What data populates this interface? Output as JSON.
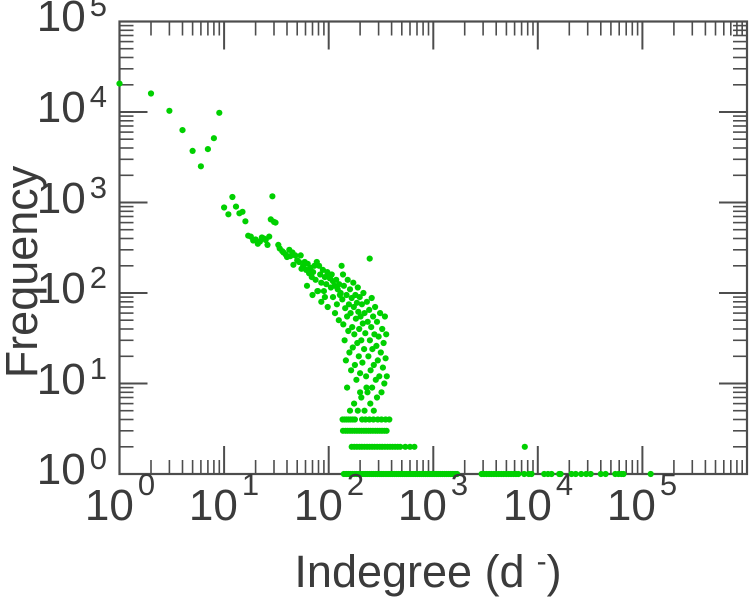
{
  "figure": {
    "ylabel": "Frequency",
    "xlabel_parts": {
      "pre": "Indegree (d",
      "sup": "-",
      "post": ")"
    },
    "tick_base": "10",
    "colors": {
      "marker": "#00d000",
      "axis": "#4d4d4d",
      "text": "#3b3b3b",
      "background": "#ffffff"
    }
  },
  "chart_data": {
    "type": "scatter",
    "title": "",
    "xlabel": "Indegree (d^-)",
    "ylabel": "Frequency",
    "xscale": "log",
    "yscale": "log",
    "xlim": [
      1,
      1000000
    ],
    "ylim": [
      1,
      100000
    ],
    "x_tick_exponents": [
      0,
      1,
      2,
      3,
      4,
      5
    ],
    "y_tick_exponents": [
      0,
      1,
      2,
      3,
      4,
      5
    ],
    "grid": false,
    "legend": "none",
    "marker": {
      "shape": "circle",
      "radius_px": 3.1,
      "color": "#00d000"
    },
    "points": [
      [
        1,
        20600
      ],
      [
        2,
        16000
      ],
      [
        3,
        10300
      ],
      [
        4,
        6310
      ],
      [
        5,
        3720
      ],
      [
        6,
        2510
      ],
      [
        7,
        3890
      ],
      [
        8,
        5130
      ],
      [
        9,
        9800
      ],
      [
        10,
        880
      ],
      [
        11,
        740
      ],
      [
        12,
        1150
      ],
      [
        13,
        900
      ],
      [
        14,
        760
      ],
      [
        15,
        790
      ],
      [
        16,
        620
      ],
      [
        17,
        430
      ],
      [
        18,
        420
      ],
      [
        19,
        380
      ],
      [
        20,
        390
      ],
      [
        21,
        350
      ],
      [
        22,
        370
      ],
      [
        23,
        410
      ],
      [
        24,
        400
      ],
      [
        25,
        385
      ],
      [
        26,
        340
      ],
      [
        27,
        420
      ],
      [
        28,
        650
      ],
      [
        29,
        1170
      ],
      [
        30,
        610
      ],
      [
        31,
        600
      ],
      [
        33,
        340
      ],
      [
        34,
        310
      ],
      [
        36,
        290
      ],
      [
        37,
        280
      ],
      [
        39,
        265
      ],
      [
        40,
        250
      ],
      [
        42,
        300
      ],
      [
        43,
        255
      ],
      [
        45,
        280
      ],
      [
        46,
        205
      ],
      [
        48,
        260
      ],
      [
        50,
        230
      ],
      [
        52,
        220
      ],
      [
        54,
        260
      ],
      [
        55,
        185
      ],
      [
        57,
        200
      ],
      [
        59,
        220
      ],
      [
        61,
        180
      ],
      [
        63,
        210
      ],
      [
        65,
        165
      ],
      [
        67,
        190
      ],
      [
        69,
        150
      ],
      [
        71,
        170
      ],
      [
        73,
        200
      ],
      [
        75,
        140
      ],
      [
        77,
        220
      ],
      [
        79,
        105
      ],
      [
        81,
        200
      ],
      [
        83,
        160
      ],
      [
        85,
        130
      ],
      [
        88,
        180
      ],
      [
        90,
        105
      ],
      [
        92,
        150
      ],
      [
        95,
        125
      ],
      [
        97,
        170
      ],
      [
        100,
        150
      ],
      [
        62,
        120
      ],
      [
        70,
        95
      ],
      [
        78,
        105
      ],
      [
        85,
        80
      ],
      [
        92,
        90
      ],
      [
        98,
        70
      ],
      [
        105,
        115
      ],
      [
        110,
        90
      ],
      [
        115,
        60
      ],
      [
        120,
        75
      ],
      [
        125,
        50
      ],
      [
        128,
        95
      ],
      [
        103,
        145
      ],
      [
        107,
        160
      ],
      [
        110,
        135
      ],
      [
        114,
        120
      ],
      [
        118,
        140
      ],
      [
        122,
        110
      ],
      [
        126,
        125
      ],
      [
        130,
        100
      ],
      [
        133,
        200
      ],
      [
        137,
        160
      ],
      [
        135,
        85
      ],
      [
        138,
        45
      ],
      [
        140,
        120
      ],
      [
        142,
        30
      ],
      [
        144,
        68
      ],
      [
        146,
        18
      ],
      [
        148,
        95
      ],
      [
        150,
        55
      ],
      [
        150,
        9
      ],
      [
        152,
        140
      ],
      [
        154,
        38
      ],
      [
        156,
        75
      ],
      [
        158,
        22
      ],
      [
        160,
        110
      ],
      [
        160,
        5
      ],
      [
        162,
        60
      ],
      [
        164,
        14
      ],
      [
        166,
        88
      ],
      [
        168,
        42
      ],
      [
        170,
        25
      ],
      [
        172,
        130
      ],
      [
        174,
        70
      ],
      [
        175,
        6
      ],
      [
        176,
        35
      ],
      [
        178,
        16
      ],
      [
        180,
        95
      ],
      [
        182,
        52
      ],
      [
        184,
        11
      ],
      [
        186,
        78
      ],
      [
        188,
        28
      ],
      [
        190,
        5
      ],
      [
        190,
        115
      ],
      [
        192,
        62
      ],
      [
        194,
        20
      ],
      [
        196,
        40
      ],
      [
        198,
        90
      ],
      [
        200,
        8
      ],
      [
        200,
        13
      ],
      [
        202,
        55
      ],
      [
        205,
        7
      ],
      [
        205,
        30
      ],
      [
        208,
        75
      ],
      [
        210,
        17
      ],
      [
        212,
        46
      ],
      [
        215,
        100
      ],
      [
        218,
        24
      ],
      [
        220,
        5
      ],
      [
        220,
        60
      ],
      [
        224,
        36
      ],
      [
        228,
        12
      ],
      [
        230,
        9
      ],
      [
        232,
        80
      ],
      [
        235,
        8
      ],
      [
        236,
        48
      ],
      [
        240,
        20
      ],
      [
        244,
        65
      ],
      [
        247,
        240
      ],
      [
        248,
        30
      ],
      [
        250,
        6
      ],
      [
        252,
        14
      ],
      [
        255,
        42
      ],
      [
        258,
        88
      ],
      [
        260,
        9
      ],
      [
        262,
        24
      ],
      [
        266,
        55
      ],
      [
        270,
        5
      ],
      [
        270,
        16
      ],
      [
        274,
        35
      ],
      [
        278,
        70
      ],
      [
        282,
        11
      ],
      [
        286,
        26
      ],
      [
        290,
        7
      ],
      [
        290,
        48
      ],
      [
        295,
        18
      ],
      [
        300,
        33
      ],
      [
        305,
        12
      ],
      [
        310,
        60
      ],
      [
        315,
        22
      ],
      [
        320,
        8
      ],
      [
        325,
        40
      ],
      [
        330,
        15
      ],
      [
        335,
        28
      ],
      [
        340,
        10
      ],
      [
        345,
        55
      ],
      [
        350,
        19
      ],
      [
        355,
        35
      ],
      [
        360,
        12
      ],
      [
        136,
        4
      ],
      [
        142,
        4
      ],
      [
        148,
        4
      ],
      [
        155,
        4
      ],
      [
        162,
        4
      ],
      [
        170,
        4
      ],
      [
        178,
        4
      ],
      [
        209,
        4
      ],
      [
        225,
        4
      ],
      [
        245,
        4
      ],
      [
        268,
        4
      ],
      [
        295,
        4
      ],
      [
        320,
        4
      ],
      [
        350,
        4
      ],
      [
        380,
        4
      ],
      [
        137,
        3
      ],
      [
        145,
        3
      ],
      [
        152,
        3
      ],
      [
        160,
        3
      ],
      [
        168,
        3
      ],
      [
        177,
        3
      ],
      [
        186,
        3
      ],
      [
        196,
        3
      ],
      [
        206,
        3
      ],
      [
        217,
        3
      ],
      [
        228,
        3
      ],
      [
        240,
        3
      ],
      [
        252,
        3
      ],
      [
        265,
        3
      ],
      [
        279,
        3
      ],
      [
        293,
        3
      ],
      [
        308,
        3
      ],
      [
        324,
        3
      ],
      [
        341,
        3
      ],
      [
        358,
        3
      ],
      [
        166,
        2
      ],
      [
        176,
        2
      ],
      [
        186,
        2
      ],
      [
        197,
        2
      ],
      [
        208,
        2
      ],
      [
        220,
        2
      ],
      [
        233,
        2
      ],
      [
        246,
        2
      ],
      [
        260,
        2
      ],
      [
        275,
        2
      ],
      [
        291,
        2
      ],
      [
        308,
        2
      ],
      [
        326,
        2
      ],
      [
        345,
        2
      ],
      [
        365,
        2
      ],
      [
        386,
        2
      ],
      [
        408,
        2
      ],
      [
        432,
        2
      ],
      [
        457,
        2
      ],
      [
        483,
        2
      ],
      [
        540,
        2
      ],
      [
        600,
        2
      ],
      [
        660,
        2
      ],
      [
        7500,
        2
      ],
      [
        140,
        1
      ],
      [
        147,
        1
      ],
      [
        154,
        1
      ],
      [
        161,
        1
      ],
      [
        169,
        1
      ],
      [
        177,
        1
      ],
      [
        185,
        1
      ],
      [
        194,
        1
      ],
      [
        203,
        1
      ],
      [
        213,
        1
      ],
      [
        223,
        1
      ],
      [
        233,
        1
      ],
      [
        244,
        1
      ],
      [
        256,
        1
      ],
      [
        268,
        1
      ],
      [
        281,
        1
      ],
      [
        294,
        1
      ],
      [
        308,
        1
      ],
      [
        322,
        1
      ],
      [
        337,
        1
      ],
      [
        353,
        1
      ],
      [
        370,
        1
      ],
      [
        387,
        1
      ],
      [
        405,
        1
      ],
      [
        424,
        1
      ],
      [
        444,
        1
      ],
      [
        465,
        1
      ],
      [
        487,
        1
      ],
      [
        510,
        1
      ],
      [
        534,
        1
      ],
      [
        559,
        1
      ],
      [
        585,
        1
      ],
      [
        613,
        1
      ],
      [
        642,
        1
      ],
      [
        672,
        1
      ],
      [
        704,
        1
      ],
      [
        737,
        1
      ],
      [
        772,
        1
      ],
      [
        808,
        1
      ],
      [
        846,
        1
      ],
      [
        886,
        1
      ],
      [
        928,
        1
      ],
      [
        972,
        1
      ],
      [
        1018,
        1
      ],
      [
        1066,
        1
      ],
      [
        1116,
        1
      ],
      [
        1169,
        1
      ],
      [
        1224,
        1
      ],
      [
        1282,
        1
      ],
      [
        1342,
        1
      ],
      [
        1405,
        1
      ],
      [
        1471,
        1
      ],
      [
        1540,
        1
      ],
      [
        1613,
        1
      ],
      [
        1689,
        1
      ],
      [
        2900,
        1
      ],
      [
        3060,
        1
      ],
      [
        3230,
        1
      ],
      [
        3410,
        1
      ],
      [
        3600,
        1
      ],
      [
        3800,
        1
      ],
      [
        4010,
        1
      ],
      [
        4230,
        1
      ],
      [
        4470,
        1
      ],
      [
        4720,
        1
      ],
      [
        4980,
        1
      ],
      [
        5260,
        1
      ],
      [
        5550,
        1
      ],
      [
        5860,
        1
      ],
      [
        6180,
        1
      ],
      [
        6520,
        1
      ],
      [
        7400,
        1
      ],
      [
        8200,
        1
      ],
      [
        8700,
        1
      ],
      [
        11500,
        1
      ],
      [
        12500,
        1
      ],
      [
        13500,
        1
      ],
      [
        16000,
        1
      ],
      [
        16500,
        1
      ],
      [
        21000,
        1
      ],
      [
        23000,
        1
      ],
      [
        26000,
        1
      ],
      [
        29000,
        1
      ],
      [
        32000,
        1
      ],
      [
        40000,
        1
      ],
      [
        44500,
        1
      ],
      [
        55000,
        1
      ],
      [
        59000,
        1
      ],
      [
        63000,
        1
      ],
      [
        66000,
        1
      ],
      [
        120000,
        1
      ]
    ]
  }
}
